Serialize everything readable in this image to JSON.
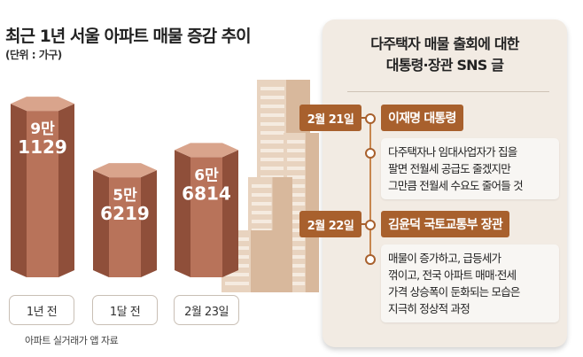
{
  "chart_data": {
    "type": "bar",
    "title": "최근 1년 서울 아파트 매물 증감 추이",
    "unit": "(단위 : 가구)",
    "categories": [
      "1년 전",
      "1달 전",
      "2월 23일"
    ],
    "values": [
      91129,
      56219,
      66814
    ],
    "value_labels": [
      [
        "9만",
        "1129"
      ],
      [
        "5만",
        "6219"
      ],
      [
        "6만",
        "6814"
      ]
    ],
    "source": "아파트 실거래가 앱 자료",
    "colors": {
      "bar": "#b8735a",
      "bar_dark": "#8f4f3a",
      "bar_top": "#d9a48c"
    }
  },
  "panel": {
    "title_line1": "다주택자 매물 출회에 대한",
    "title_line2": "대통령·장관 SNS 글",
    "entries": [
      {
        "date": "2월 21일",
        "name": "이재명 대통령",
        "lines": [
          "다주택자나 임대사업자가 집을",
          "팔면 전월세 공급도 줄겠지만",
          "그만큼  전월세 수요도 줄어들 것"
        ]
      },
      {
        "date": "2월 22일",
        "name": "김윤덕 국토교통부 장관",
        "lines": [
          "매물이 증가하고, 급등세가",
          "꺾이고, 전국 아파트 매매·전세",
          "가격 상승폭이 둔화되는 모습은",
          "지극히 정상적 과정"
        ]
      }
    ],
    "accent": "#a8602d"
  }
}
